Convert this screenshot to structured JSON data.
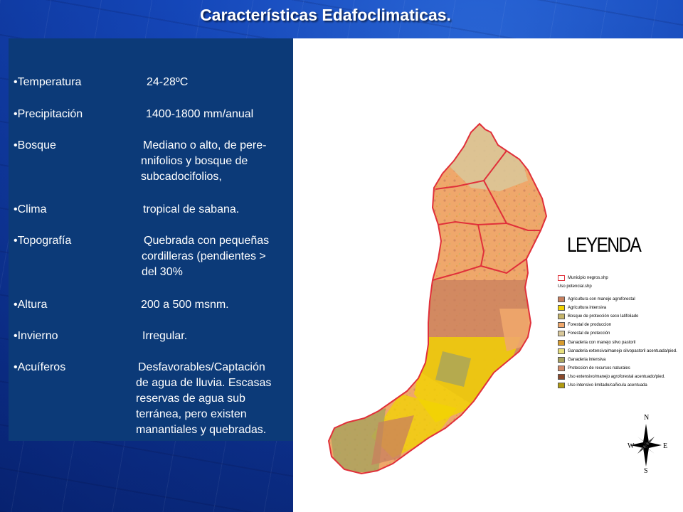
{
  "slide": {
    "title": "Características Edafoclimaticas."
  },
  "characteristics": [
    {
      "label": "•Temperatura",
      "value_lines": [
        "24-28ºC"
      ]
    },
    {
      "label": "•Precipitación",
      "value_lines": [
        "1400-1800 mm/anual"
      ]
    },
    {
      "label": "•Bosque",
      "value_lines": [
        "Mediano o alto, de pere-",
        "nnifolios y  bosque de",
        "subcadocifolios,"
      ]
    },
    {
      "label": "•Clima",
      "value_lines": [
        "tropical de sabana."
      ]
    },
    {
      "label": "•Topografía",
      "value_lines": [
        "Quebrada con pequeñas",
        "cordilleras  (pendientes >",
        "del   30%"
      ]
    },
    {
      "label": "•Altura",
      "value_lines": [
        "200 a 500 msnm."
      ]
    },
    {
      "label": "•Invierno",
      "value_lines": [
        "Irregular."
      ]
    },
    {
      "label": "•Acuíferos",
      "value_lines": [
        "Desfavorables/Captación",
        "de agua de lluvia. Escasas",
        "reservas de agua sub",
        "terránea, pero existen",
        "manantiales y quebradas."
      ]
    }
  ],
  "legend": {
    "title": "LEYENDA",
    "boundary_layer": {
      "label": "Municipio negros.shp",
      "color": "#e0303a"
    },
    "usage_layer": "Uso potencial.shp",
    "items": [
      {
        "label": "Agricultura con manejo agroforestal",
        "color": "#c87f5e"
      },
      {
        "label": "Agricultura intensiva",
        "color": "#f2d400"
      },
      {
        "label": "Bosque de protección seco latifoliado",
        "color": "#c5b46a"
      },
      {
        "label": "Forestal de produccion",
        "color": "#efa76b"
      },
      {
        "label": "Forestal de protección",
        "color": "#d9c89a"
      },
      {
        "label": "Ganaderia con manejo silvo pastoril",
        "color": "#d79b2e"
      },
      {
        "label": "Ganaderia extensiva/manejo silvopastoril acentuada/pied.",
        "color": "#e7df7c"
      },
      {
        "label": "Ganaderia intensiva",
        "color": "#a8a35e"
      },
      {
        "label": "Proteccion de recursos naturales",
        "color": "#d28a6a"
      },
      {
        "label": "Uso extensivo/manejo agroforestal acentuado/pied.",
        "color": "#8a4a2c"
      },
      {
        "label": "Uso intensivo limitado/cañicula acentuada",
        "color": "#b09a10"
      }
    ]
  },
  "compass": {
    "n": "N",
    "s": "S",
    "e": "E",
    "w": "W"
  },
  "colors": {
    "background": "#1446b8",
    "text_panel": "#0c3a78",
    "map_panel": "#ffffff",
    "boundary": "#e0303a"
  }
}
